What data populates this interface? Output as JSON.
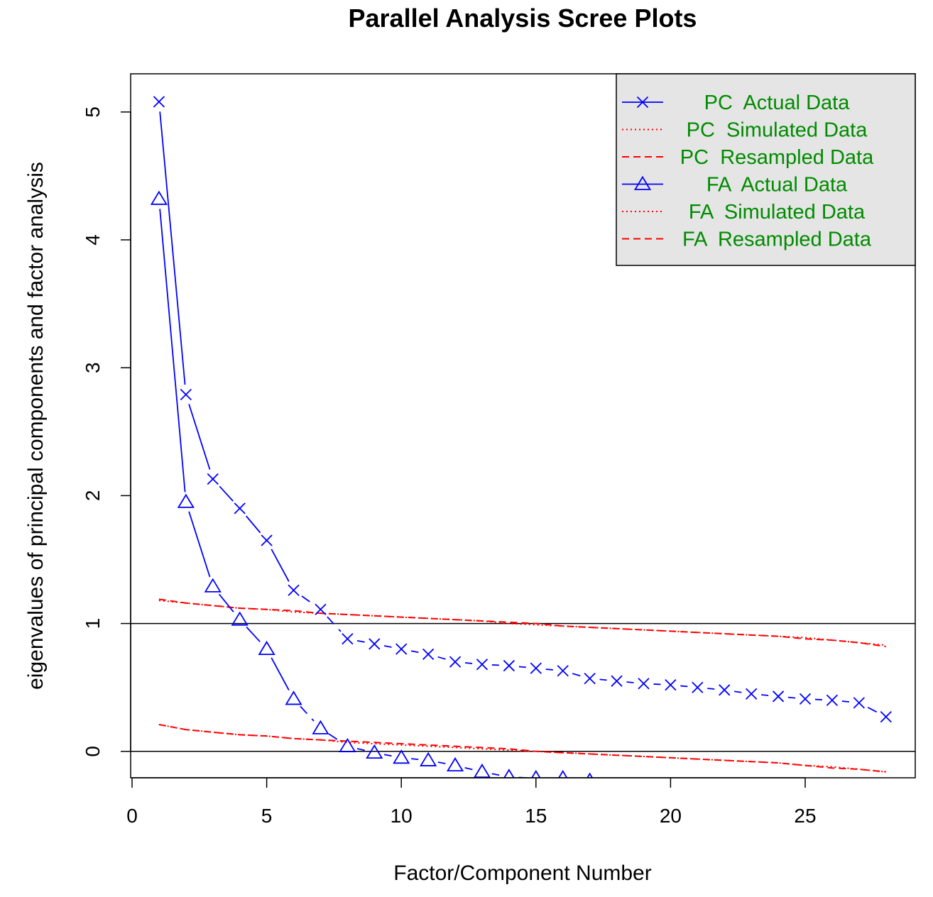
{
  "chart_data": {
    "type": "line",
    "title": "Parallel Analysis Scree Plots",
    "xlabel": "Factor/Component Number",
    "ylabel": "eigenvalues of principal components and factor analysis",
    "xlim": [
      0,
      29.1
    ],
    "ylim": [
      -0.2,
      5.3
    ],
    "xticks": [
      0,
      5,
      10,
      15,
      20,
      25
    ],
    "yticks": [
      0,
      1,
      2,
      3,
      4,
      5
    ],
    "hlines": [
      1,
      0
    ],
    "grid": false,
    "legend_position": "top-right",
    "colors": {
      "actual": "#0000ff",
      "simulated": "#ff0000",
      "legend_text": "#008b00",
      "legend_bg": "#e5e5e5"
    },
    "series": [
      {
        "name": "PC  Actual Data",
        "marker": "x",
        "style": "actual",
        "x": [
          1,
          2,
          3,
          4,
          5,
          6,
          7,
          8,
          9,
          10,
          11,
          12,
          13,
          14,
          15,
          16,
          17,
          18,
          19,
          20,
          21,
          22,
          23,
          24,
          25,
          26,
          27,
          28
        ],
        "values": [
          5.08,
          2.79,
          2.13,
          1.9,
          1.65,
          1.26,
          1.11,
          0.88,
          0.84,
          0.8,
          0.76,
          0.7,
          0.68,
          0.67,
          0.65,
          0.63,
          0.57,
          0.55,
          0.53,
          0.52,
          0.5,
          0.48,
          0.45,
          0.43,
          0.41,
          0.4,
          0.38,
          0.27
        ]
      },
      {
        "name": "PC  Simulated Data",
        "style": "dotted",
        "x": [
          1,
          2,
          3,
          4,
          5,
          6,
          7,
          8,
          9,
          10,
          11,
          12,
          13,
          14,
          15,
          16,
          17,
          18,
          19,
          20,
          21,
          22,
          23,
          24,
          25,
          26,
          27,
          28
        ],
        "values": [
          1.18,
          1.16,
          1.14,
          1.12,
          1.11,
          1.09,
          1.08,
          1.07,
          1.06,
          1.05,
          1.04,
          1.03,
          1.02,
          1.0,
          0.99,
          0.98,
          0.97,
          0.96,
          0.95,
          0.94,
          0.93,
          0.92,
          0.91,
          0.9,
          0.89,
          0.87,
          0.85,
          0.83
        ]
      },
      {
        "name": "PC  Resampled Data",
        "style": "dashed",
        "x": [
          1,
          2,
          3,
          4,
          5,
          6,
          7,
          8,
          9,
          10,
          11,
          12,
          13,
          14,
          15,
          16,
          17,
          18,
          19,
          20,
          21,
          22,
          23,
          24,
          25,
          26,
          27,
          28
        ],
        "values": [
          1.19,
          1.16,
          1.14,
          1.12,
          1.11,
          1.1,
          1.08,
          1.07,
          1.06,
          1.05,
          1.04,
          1.03,
          1.02,
          1.01,
          1.0,
          0.98,
          0.97,
          0.96,
          0.95,
          0.94,
          0.93,
          0.92,
          0.91,
          0.9,
          0.88,
          0.87,
          0.85,
          0.82
        ]
      },
      {
        "name": "FA  Actual Data",
        "marker": "triangle",
        "style": "actual",
        "x": [
          1,
          2,
          3,
          4,
          5,
          6,
          7,
          8,
          9,
          10,
          11,
          12,
          13,
          14,
          15,
          16,
          17
        ],
        "values": [
          4.32,
          1.95,
          1.29,
          1.03,
          0.8,
          0.41,
          0.18,
          0.04,
          -0.01,
          -0.05,
          -0.07,
          -0.11,
          -0.16,
          -0.2,
          -0.21,
          -0.21,
          -0.23
        ]
      },
      {
        "name": "FA  Simulated Data",
        "style": "dotted",
        "x": [
          1,
          2,
          3,
          4,
          5,
          6,
          7,
          8,
          9,
          10,
          11,
          12,
          13,
          14,
          15,
          16,
          17,
          18,
          19,
          20,
          21,
          22,
          23,
          24,
          25,
          26,
          27,
          28
        ],
        "values": [
          0.21,
          0.17,
          0.15,
          0.13,
          0.12,
          0.1,
          0.09,
          0.07,
          0.06,
          0.05,
          0.04,
          0.03,
          0.02,
          0.01,
          0.0,
          -0.01,
          -0.02,
          -0.03,
          -0.04,
          -0.05,
          -0.06,
          -0.07,
          -0.08,
          -0.09,
          -0.11,
          -0.12,
          -0.14,
          -0.16
        ]
      },
      {
        "name": "FA  Resampled Data",
        "style": "dashed",
        "x": [
          1,
          2,
          3,
          4,
          5,
          6,
          7,
          8,
          9,
          10,
          11,
          12,
          13,
          14,
          15,
          16,
          17,
          18,
          19,
          20,
          21,
          22,
          23,
          24,
          25,
          26,
          27,
          28
        ],
        "values": [
          0.21,
          0.17,
          0.15,
          0.13,
          0.12,
          0.1,
          0.09,
          0.08,
          0.07,
          0.06,
          0.05,
          0.04,
          0.03,
          0.02,
          0.0,
          -0.01,
          -0.02,
          -0.03,
          -0.04,
          -0.05,
          -0.06,
          -0.07,
          -0.08,
          -0.09,
          -0.11,
          -0.13,
          -0.14,
          -0.16
        ]
      }
    ]
  }
}
